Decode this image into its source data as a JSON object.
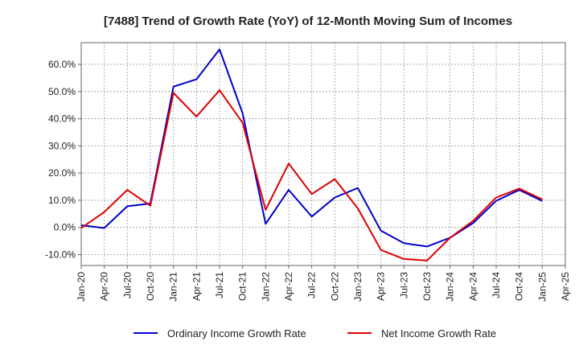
{
  "chart_data": {
    "type": "line",
    "title": "[7488]  Trend of Growth Rate (YoY) of 12-Month Moving Sum of Incomes",
    "xlabel": "",
    "ylabel": "",
    "x_tick_labels": [
      "Jan-20",
      "Apr-20",
      "Jul-20",
      "Oct-20",
      "Jan-21",
      "Apr-21",
      "Jul-21",
      "Oct-21",
      "Jan-22",
      "Apr-22",
      "Jul-22",
      "Oct-22",
      "Jan-23",
      "Apr-23",
      "Jul-23",
      "Oct-23",
      "Jan-24",
      "Apr-24",
      "Jul-24",
      "Oct-24",
      "Jan-25",
      "Apr-25"
    ],
    "y_tick_values": [
      -10,
      0,
      10,
      20,
      30,
      40,
      50,
      60
    ],
    "y_tick_labels": [
      "-10.0%",
      "0.0%",
      "10.0%",
      "20.0%",
      "30.0%",
      "40.0%",
      "50.0%",
      "60.0%"
    ],
    "ylim": [
      -14,
      68
    ],
    "grid": true,
    "legend_position": "bottom",
    "series": [
      {
        "name": "Ordinary Income Growth Rate",
        "color": "#0000cc",
        "values": [
          0.8,
          -0.2,
          7.8,
          8.8,
          51.8,
          54.5,
          65.5,
          42.0,
          1.3,
          13.8,
          4.0,
          11.0,
          14.5,
          -1.2,
          -5.8,
          -7.0,
          -3.8,
          1.6,
          9.8,
          13.8,
          9.7
        ]
      },
      {
        "name": "Net Income Growth Rate",
        "color": "#dd0000",
        "values": [
          -0.2,
          5.7,
          13.8,
          8.0,
          49.5,
          40.8,
          50.5,
          38.5,
          6.5,
          23.5,
          12.3,
          17.8,
          7.0,
          -8.3,
          -11.6,
          -12.2,
          -3.8,
          2.4,
          11.0,
          14.3,
          10.3
        ]
      }
    ]
  }
}
